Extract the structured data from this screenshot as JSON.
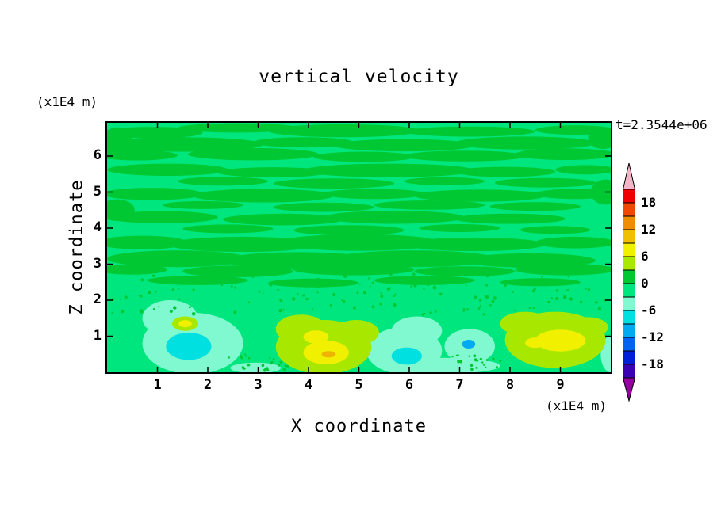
{
  "chart_data": {
    "type": "heatmap",
    "subtype": "filled-contour",
    "title": "vertical velocity",
    "time": "t=2.3544e+06",
    "xlabel": "X coordinate",
    "ylabel": "Z coordinate",
    "x_unit": "(x1E4 m)",
    "y_unit": "(x1E4 m)",
    "xlim": [
      0,
      10
    ],
    "ylim": [
      0,
      6.93
    ],
    "x_ticks": [
      1,
      2,
      3,
      4,
      5,
      6,
      7,
      8,
      9
    ],
    "y_ticks": [
      1,
      2,
      3,
      4,
      5,
      6
    ],
    "contour_levels": [
      -21,
      -18,
      -15,
      -12,
      -9,
      -6,
      -3,
      0,
      3,
      6,
      9,
      12,
      15,
      18,
      21
    ],
    "grid": false,
    "legend_position": "right-colorbar",
    "palette": {
      "base": "#00E67E",
      "g1": "#00C832",
      "m1": "#80F8D0",
      "c1": "#00E0E0",
      "b1": "#00AAF0",
      "y1": "#A8E800",
      "y2": "#F0F000",
      "y3": "#F0B400"
    },
    "base": "base",
    "features_format": "[x, y, rx, ry, palette_key] in data coordinates",
    "features": [
      [
        0.9,
        6.65,
        1.0,
        0.16,
        "g1"
      ],
      [
        2.6,
        6.78,
        1.2,
        0.13,
        "g1"
      ],
      [
        4.7,
        6.7,
        1.5,
        0.18,
        "g1"
      ],
      [
        7.2,
        6.68,
        1.3,
        0.14,
        "g1"
      ],
      [
        9.3,
        6.72,
        0.8,
        0.13,
        "g1"
      ],
      [
        1.5,
        6.32,
        1.6,
        0.2,
        "g1"
      ],
      [
        3.9,
        6.38,
        1.0,
        0.14,
        "g1"
      ],
      [
        5.9,
        6.3,
        1.4,
        0.17,
        "g1"
      ],
      [
        8.3,
        6.36,
        1.4,
        0.18,
        "g1"
      ],
      [
        0.6,
        6.02,
        0.8,
        0.14,
        "g1"
      ],
      [
        2.9,
        6.05,
        1.3,
        0.17,
        "g1"
      ],
      [
        5.1,
        5.98,
        1.0,
        0.14,
        "g1"
      ],
      [
        7.1,
        6.0,
        1.2,
        0.15,
        "g1"
      ],
      [
        9.1,
        6.05,
        1.0,
        0.16,
        "g1"
      ],
      [
        1.2,
        5.62,
        1.2,
        0.17,
        "g1"
      ],
      [
        3.3,
        5.55,
        1.1,
        0.14,
        "g1"
      ],
      [
        5.6,
        5.6,
        1.7,
        0.19,
        "g1"
      ],
      [
        7.9,
        5.56,
        1.0,
        0.14,
        "g1"
      ],
      [
        9.5,
        5.62,
        0.6,
        0.13,
        "g1"
      ],
      [
        2.3,
        5.3,
        0.9,
        0.12,
        "g1"
      ],
      [
        4.5,
        5.24,
        1.2,
        0.14,
        "g1"
      ],
      [
        6.7,
        5.3,
        0.8,
        0.11,
        "g1"
      ],
      [
        8.7,
        5.26,
        1.0,
        0.13,
        "g1"
      ],
      [
        0.9,
        4.95,
        1.0,
        0.17,
        "g1"
      ],
      [
        3.1,
        4.9,
        1.4,
        0.19,
        "g1"
      ],
      [
        5.3,
        4.95,
        1.0,
        0.14,
        "g1"
      ],
      [
        7.4,
        4.9,
        1.3,
        0.17,
        "g1"
      ],
      [
        9.3,
        4.95,
        0.8,
        0.14,
        "g1"
      ],
      [
        1.9,
        4.64,
        0.8,
        0.11,
        "g1"
      ],
      [
        4.3,
        4.58,
        1.0,
        0.13,
        "g1"
      ],
      [
        6.4,
        4.64,
        1.1,
        0.13,
        "g1"
      ],
      [
        8.5,
        4.6,
        0.9,
        0.12,
        "g1"
      ],
      [
        1.1,
        4.3,
        1.1,
        0.17,
        "g1"
      ],
      [
        3.5,
        4.24,
        1.2,
        0.16,
        "g1"
      ],
      [
        5.7,
        4.3,
        1.4,
        0.18,
        "g1"
      ],
      [
        8.0,
        4.26,
        1.1,
        0.14,
        "g1"
      ],
      [
        2.4,
        3.98,
        0.9,
        0.12,
        "g1"
      ],
      [
        4.8,
        3.94,
        1.1,
        0.14,
        "g1"
      ],
      [
        7.0,
        4.0,
        0.8,
        0.11,
        "g1"
      ],
      [
        8.9,
        3.95,
        0.7,
        0.11,
        "g1"
      ],
      [
        0.7,
        3.6,
        0.9,
        0.19,
        "g1"
      ],
      [
        2.7,
        3.55,
        1.5,
        0.21,
        "g1"
      ],
      [
        5.0,
        3.6,
        1.6,
        0.23,
        "g1"
      ],
      [
        7.3,
        3.55,
        1.4,
        0.19,
        "g1"
      ],
      [
        9.3,
        3.6,
        0.8,
        0.16,
        "g1"
      ],
      [
        1.4,
        3.15,
        1.4,
        0.23,
        "g1"
      ],
      [
        3.8,
        3.1,
        1.5,
        0.23,
        "g1"
      ],
      [
        6.1,
        3.15,
        1.6,
        0.23,
        "g1"
      ],
      [
        8.4,
        3.1,
        1.3,
        0.2,
        "g1"
      ],
      [
        0.5,
        2.85,
        0.7,
        0.14,
        "g1"
      ],
      [
        2.6,
        2.8,
        1.1,
        0.16,
        "g1"
      ],
      [
        4.9,
        2.85,
        1.2,
        0.16,
        "g1"
      ],
      [
        7.1,
        2.8,
        1.0,
        0.14,
        "g1"
      ],
      [
        9.1,
        2.85,
        1.0,
        0.16,
        "g1"
      ],
      [
        1.8,
        2.55,
        1.0,
        0.13,
        "g1"
      ],
      [
        4.1,
        2.48,
        0.9,
        0.12,
        "g1"
      ],
      [
        6.3,
        2.55,
        1.0,
        0.13,
        "g1"
      ],
      [
        8.6,
        2.5,
        0.8,
        0.11,
        "g1"
      ],
      [
        0.2,
        4.5,
        0.35,
        0.3,
        "g1"
      ],
      [
        0.2,
        6.4,
        0.3,
        0.4,
        "g1"
      ],
      [
        9.9,
        5.0,
        0.3,
        0.35,
        "g1"
      ],
      [
        9.85,
        6.5,
        0.3,
        0.3,
        "g1"
      ],
      [
        1.7,
        0.8,
        1.0,
        0.85,
        "m1"
      ],
      [
        1.25,
        1.5,
        0.55,
        0.5,
        "m1"
      ],
      [
        5.9,
        0.6,
        0.75,
        0.65,
        "m1"
      ],
      [
        6.15,
        1.15,
        0.5,
        0.4,
        "m1"
      ],
      [
        6.7,
        0.18,
        1.1,
        0.22,
        "m1"
      ],
      [
        7.2,
        0.72,
        0.5,
        0.48,
        "m1"
      ],
      [
        2.95,
        0.12,
        0.5,
        0.15,
        "m1"
      ],
      [
        10.0,
        0.5,
        0.2,
        0.5,
        "m1"
      ],
      [
        1.62,
        0.72,
        0.45,
        0.38,
        "c1"
      ],
      [
        5.95,
        0.45,
        0.3,
        0.24,
        "c1"
      ],
      [
        7.18,
        0.78,
        0.13,
        0.12,
        "b1"
      ],
      [
        4.3,
        0.7,
        0.95,
        0.75,
        "y1"
      ],
      [
        3.85,
        1.2,
        0.5,
        0.4,
        "y1"
      ],
      [
        4.95,
        1.1,
        0.45,
        0.35,
        "y1"
      ],
      [
        8.9,
        0.9,
        1.0,
        0.78,
        "y1"
      ],
      [
        8.3,
        1.35,
        0.5,
        0.33,
        "y1"
      ],
      [
        9.55,
        1.25,
        0.4,
        0.28,
        "y1"
      ],
      [
        1.55,
        1.35,
        0.26,
        0.2,
        "y1"
      ],
      [
        4.35,
        0.55,
        0.45,
        0.33,
        "y2"
      ],
      [
        4.15,
        0.98,
        0.25,
        0.18,
        "y2"
      ],
      [
        9.0,
        0.88,
        0.5,
        0.3,
        "y2"
      ],
      [
        8.5,
        0.82,
        0.2,
        0.14,
        "y2"
      ],
      [
        1.55,
        1.35,
        0.13,
        0.1,
        "y2"
      ],
      [
        4.4,
        0.5,
        0.14,
        0.09,
        "y3"
      ]
    ],
    "speckles": [
      {
        "seed": 11,
        "count": 130,
        "x": [
          0.05,
          9.95
        ],
        "y": [
          1.6,
          2.75
        ],
        "r": [
          1.0,
          2.4
        ],
        "c": "g1"
      },
      {
        "seed": 5,
        "count": 25,
        "x": [
          2.4,
          3.6
        ],
        "y": [
          0.05,
          0.5
        ],
        "r": [
          1.0,
          2.0
        ],
        "c": "g1"
      },
      {
        "seed": 9,
        "count": 20,
        "x": [
          6.6,
          7.9
        ],
        "y": [
          0.05,
          0.5
        ],
        "r": [
          1.0,
          2.0
        ],
        "c": "g1"
      }
    ]
  },
  "colorbar": {
    "labels": [
      "18",
      "12",
      "6",
      "0",
      "-6",
      "-12",
      "-18"
    ],
    "label_values": [
      18,
      12,
      6,
      0,
      -6,
      -12,
      -18
    ],
    "levels_min": -21,
    "levels_max": 21,
    "step": 3,
    "segment_colors_top_to_bottom": [
      "#F00000",
      "#F04800",
      "#F08C00",
      "#F0C000",
      "#F0F000",
      "#A8E800",
      "#00C832",
      "#00E67E",
      "#80F8D0",
      "#00E0E0",
      "#00AAF0",
      "#0064F0",
      "#0020D8",
      "#3C00B4"
    ],
    "top_cap_color": "#F4B4C8",
    "bottom_cap_color": "#9600A0"
  }
}
